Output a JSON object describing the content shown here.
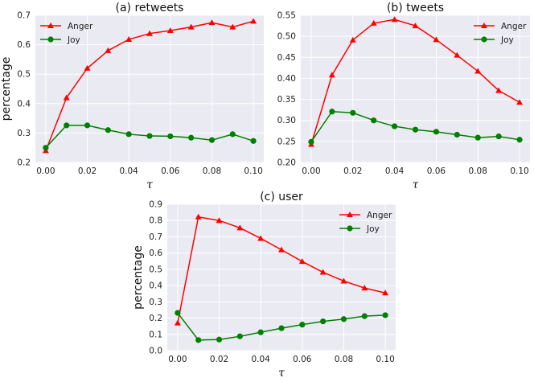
{
  "colors": {
    "plot_bg": "#eaeaf2",
    "grid": "#ffffff",
    "anger": "#ff0000",
    "joy": "#008000"
  },
  "chart_data": [
    {
      "type": "line",
      "id": "retweets",
      "title": "(a) retweets",
      "xlabel": "τ",
      "ylabel": "percentage",
      "xlim": [
        -0.005,
        0.105
      ],
      "ylim": [
        0.2,
        0.7
      ],
      "xticks": [
        0.0,
        0.02,
        0.04,
        0.06,
        0.08,
        0.1
      ],
      "xtick_labels": [
        "0.00",
        "0.02",
        "0.04",
        "0.06",
        "0.08",
        "0.10"
      ],
      "yticks": [
        0.2,
        0.3,
        0.4,
        0.5,
        0.6,
        0.7
      ],
      "ytick_labels": [
        "0.2",
        "0.3",
        "0.4",
        "0.5",
        "0.6",
        "0.7"
      ],
      "legend": "top-left",
      "x": [
        0.0,
        0.01,
        0.02,
        0.03,
        0.04,
        0.05,
        0.06,
        0.07,
        0.08,
        0.09,
        0.1
      ],
      "series": [
        {
          "name": "Anger",
          "marker": "triangle",
          "values": [
            0.24,
            0.42,
            0.52,
            0.58,
            0.618,
            0.638,
            0.648,
            0.66,
            0.675,
            0.66,
            0.68
          ]
        },
        {
          "name": "Joy",
          "marker": "circle",
          "values": [
            0.25,
            0.326,
            0.326,
            0.31,
            0.296,
            0.29,
            0.289,
            0.284,
            0.276,
            0.296,
            0.273
          ]
        }
      ]
    },
    {
      "type": "line",
      "id": "tweets",
      "title": "(b) tweets",
      "xlabel": "τ",
      "ylabel": "",
      "xlim": [
        -0.005,
        0.105
      ],
      "ylim": [
        0.2,
        0.55
      ],
      "xticks": [
        0.0,
        0.02,
        0.04,
        0.06,
        0.08,
        0.1
      ],
      "xtick_labels": [
        "0.00",
        "0.02",
        "0.04",
        "0.06",
        "0.08",
        "0.10"
      ],
      "yticks": [
        0.2,
        0.25,
        0.3,
        0.35,
        0.4,
        0.45,
        0.5,
        0.55
      ],
      "ytick_labels": [
        "0.20",
        "0.25",
        "0.30",
        "0.35",
        "0.40",
        "0.45",
        "0.50",
        "0.55"
      ],
      "legend": "top-right",
      "x": [
        0.0,
        0.01,
        0.02,
        0.03,
        0.04,
        0.05,
        0.06,
        0.07,
        0.08,
        0.09,
        0.1
      ],
      "series": [
        {
          "name": "Anger",
          "marker": "triangle",
          "values": [
            0.243,
            0.408,
            0.491,
            0.531,
            0.54,
            0.525,
            0.492,
            0.455,
            0.417,
            0.371,
            0.343
          ]
        },
        {
          "name": "Joy",
          "marker": "circle",
          "values": [
            0.249,
            0.321,
            0.318,
            0.3,
            0.286,
            0.278,
            0.273,
            0.266,
            0.259,
            0.262,
            0.254
          ]
        }
      ]
    },
    {
      "type": "line",
      "id": "user",
      "title": "(c) user",
      "xlabel": "τ",
      "ylabel": "percentage",
      "xlim": [
        -0.005,
        0.105
      ],
      "ylim": [
        0.0,
        0.9
      ],
      "xticks": [
        0.0,
        0.02,
        0.04,
        0.06,
        0.08,
        0.1
      ],
      "xtick_labels": [
        "0.00",
        "0.02",
        "0.04",
        "0.06",
        "0.08",
        "0.10"
      ],
      "yticks": [
        0.0,
        0.1,
        0.2,
        0.3,
        0.4,
        0.5,
        0.6,
        0.7,
        0.8,
        0.9
      ],
      "ytick_labels": [
        "0.0",
        "0.1",
        "0.2",
        "0.3",
        "0.4",
        "0.5",
        "0.6",
        "0.7",
        "0.8",
        "0.9"
      ],
      "legend": "top-right",
      "x": [
        0.0,
        0.01,
        0.02,
        0.03,
        0.04,
        0.05,
        0.06,
        0.07,
        0.08,
        0.09,
        0.1
      ],
      "series": [
        {
          "name": "Anger",
          "marker": "triangle",
          "values": [
            0.17,
            0.822,
            0.8,
            0.755,
            0.69,
            0.62,
            0.548,
            0.482,
            0.428,
            0.385,
            0.355
          ]
        },
        {
          "name": "Joy",
          "marker": "circle",
          "values": [
            0.232,
            0.065,
            0.068,
            0.088,
            0.113,
            0.138,
            0.16,
            0.18,
            0.194,
            0.212,
            0.218
          ]
        }
      ]
    }
  ]
}
